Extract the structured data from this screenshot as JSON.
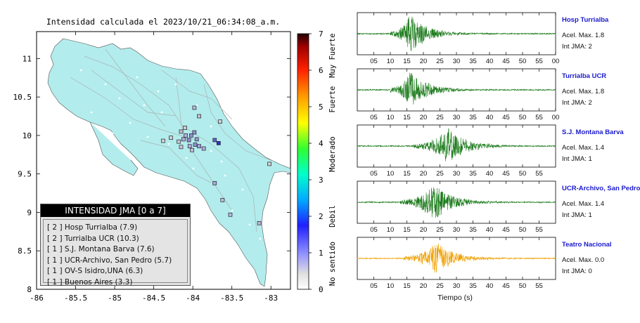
{
  "map": {
    "title": "Intensidad calculada el 2023/10/21_06:34:08_a.m.",
    "lon_ticks": [
      "-86",
      "-85.5",
      "-85",
      "-84.5",
      "-84",
      "-83.5",
      "-83"
    ],
    "lat_ticks": [
      "11",
      "10.5",
      "10",
      "9.5",
      "9",
      "8.5",
      "8"
    ],
    "xlim": [
      -86,
      -82.75
    ],
    "ylim": [
      8,
      11.35
    ],
    "land_color": "#b3ecec",
    "stations": [
      {
        "lon": -83.67,
        "lat": 9.9,
        "color": "#3030d0"
      },
      {
        "lon": -83.72,
        "lat": 9.94,
        "color": "#6060d0"
      },
      {
        "lon": -83.97,
        "lat": 9.88,
        "color": "#9090d8"
      },
      {
        "lon": -84.05,
        "lat": 9.94,
        "color": "#9090d8"
      },
      {
        "lon": -84.02,
        "lat": 10.0,
        "color": "#9090d8"
      },
      {
        "lon": -83.98,
        "lat": 10.04,
        "color": "#9090d8"
      },
      {
        "lon": -84.09,
        "lat": 10.0,
        "color": "#b0b0e0"
      },
      {
        "lon": -84.12,
        "lat": 9.95,
        "color": "#b0b0e0"
      },
      {
        "lon": -84.15,
        "lat": 10.05,
        "color": "#c0c0d8"
      },
      {
        "lon": -84.04,
        "lat": 9.86,
        "color": "#b0b0e0"
      },
      {
        "lon": -83.92,
        "lat": 9.86,
        "color": "#a0a0e0"
      },
      {
        "lon": -84.1,
        "lat": 10.1,
        "color": "#c8c8d8"
      },
      {
        "lon": -83.95,
        "lat": 9.95,
        "color": "#9898d8"
      },
      {
        "lon": -84.18,
        "lat": 9.92,
        "color": "#c8c8d8"
      },
      {
        "lon": -84.38,
        "lat": 9.93,
        "color": "#d0d0d8"
      },
      {
        "lon": -84.28,
        "lat": 9.97,
        "color": "#d0d0d8"
      },
      {
        "lon": -83.86,
        "lat": 9.83,
        "color": "#b0b0e0"
      },
      {
        "lon": -84.01,
        "lat": 9.81,
        "color": "#c0c0d8"
      },
      {
        "lon": -84.15,
        "lat": 9.85,
        "color": "#c8c8d8"
      },
      {
        "lon": -83.98,
        "lat": 10.36,
        "color": "#b8b8e0"
      },
      {
        "lon": -83.92,
        "lat": 10.25,
        "color": "#c0c0d8"
      },
      {
        "lon": -83.65,
        "lat": 10.18,
        "color": "#d0d0d8"
      },
      {
        "lon": -83.02,
        "lat": 9.63,
        "color": "#d0d0d8"
      },
      {
        "lon": -83.72,
        "lat": 9.38,
        "color": "#a8a8e0"
      },
      {
        "lon": -83.62,
        "lat": 9.16,
        "color": "#c0c0d8"
      },
      {
        "lon": -83.52,
        "lat": 8.97,
        "color": "#b8b8e0"
      },
      {
        "lon": -83.15,
        "lat": 8.86,
        "color": "#b8b8e0"
      }
    ]
  },
  "colorbar": {
    "ticks": [
      "0",
      "1",
      "2",
      "3",
      "4",
      "5",
      "6",
      "7"
    ],
    "labels": [
      "No sentido",
      "Debil",
      "Moderado",
      "Fuerte",
      "Muy Fuerte"
    ],
    "range": [
      0,
      7
    ]
  },
  "legend": {
    "title": "INTENSIDAD JMA [0 a 7]",
    "items": [
      "[ 2 ]  Hosp Turrialba (7.9)",
      "[ 2 ]  Turrialba UCR (10.3)",
      "[ 1 ]  S.J. Montana Barva (7.6)",
      "[ 1 ]  UCR-Archivo, San Pedro (5.7)",
      "[ 1 ]  OV-S Isidro,UNA (6.3)",
      "[ 1 ]  Buenos Aires (3.3)"
    ]
  },
  "traces": {
    "xlabel": "Tiempo (s)",
    "panels": [
      {
        "name": "Hosp Turrialba",
        "accel": "Acel. Max. 1.8",
        "jma": "Int JMA: 2",
        "ticks": [
          "05",
          "10",
          "15",
          "20",
          "25",
          "30",
          "35",
          "40",
          "45",
          "50",
          "55",
          "00"
        ],
        "onset": 10,
        "peak": 16,
        "amp": 1.0,
        "color": "#1a7a1a"
      },
      {
        "name": "Turrialba UCR",
        "accel": "Acel. Max. 1.8",
        "jma": "Int JMA: 2",
        "ticks": [
          "05",
          "10",
          "15",
          "20",
          "25",
          "30",
          "35",
          "40",
          "45",
          "50",
          "55",
          "00"
        ],
        "onset": 10,
        "peak": 16,
        "amp": 0.95,
        "color": "#1a7a1a"
      },
      {
        "name": "S.J. Montana Barva",
        "accel": "Acel. Max. 1.4",
        "jma": "Int JMA: 1",
        "ticks": [
          "05",
          "10",
          "15",
          "20",
          "25",
          "30",
          "35",
          "40",
          "45",
          "50",
          "55"
        ],
        "onset": 17,
        "peak": 27.5,
        "amp": 0.95,
        "color": "#1a7a1a"
      },
      {
        "name": "UCR-Archivo, San Pedro",
        "accel": "Acel. Max. 1.4",
        "jma": "Int JMA: 1",
        "ticks": [
          "05",
          "10",
          "15",
          "20",
          "25",
          "30",
          "35",
          "40",
          "45",
          "50",
          "55"
        ],
        "onset": 13,
        "peak": 23.5,
        "amp": 0.95,
        "color": "#1a7a1a"
      },
      {
        "name": "Teatro Nacional",
        "accel": "Acel. Max. 0.0",
        "jma": "Int JMA: 0",
        "ticks": [
          "05",
          "10",
          "15",
          "20",
          "25",
          "30",
          "35",
          "40",
          "45",
          "50",
          "55"
        ],
        "onset": 14,
        "peak": 24,
        "amp": 0.85,
        "color": "#f0a000"
      }
    ]
  },
  "chart_data": {
    "type": "table",
    "title": "Intensidad calculada el 2023/10/21_06:34:08_a.m.",
    "xlabel": "Tiempo (s)",
    "columns": [
      "INTENSIDAD JMA [0 a 7]",
      "Acel. Max.",
      "Int JMA"
    ],
    "rows": [
      [
        "Hosp Turrialba (7.9)",
        1.8,
        2
      ],
      [
        "Turrialba UCR (10.3)",
        1.8,
        2
      ],
      [
        "S.J. Montana Barva (7.6)",
        1.4,
        1
      ],
      [
        "UCR-Archivo, San Pedro (5.7)",
        1.4,
        1
      ],
      [
        "OV-S Isidro,UNA (6.3)",
        null,
        1
      ],
      [
        "Buenos Aires (3.3)",
        null,
        1
      ],
      [
        "Teatro Nacional",
        0.0,
        0
      ]
    ]
  }
}
